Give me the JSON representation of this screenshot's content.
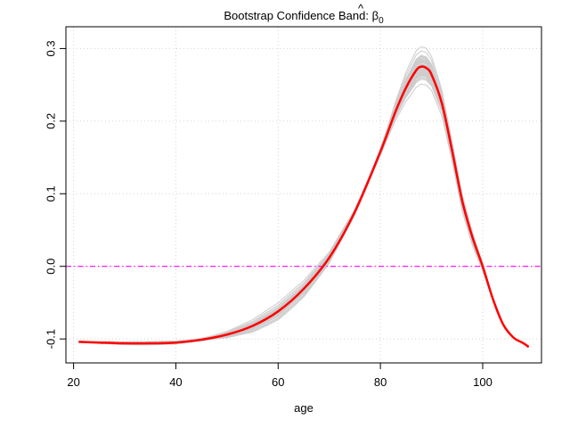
{
  "chart_data": {
    "type": "line",
    "title_text": "Bootstrap Confidence Band: ",
    "title_symbol": "β",
    "title_hat": "^",
    "title_subscript": "0",
    "xlabel": "age",
    "ylabel": "",
    "xlim": [
      18.5,
      111.5
    ],
    "ylim": [
      -0.133,
      0.33
    ],
    "x_ticks": [
      20,
      40,
      60,
      80,
      100
    ],
    "x_tick_labels": [
      "20",
      "40",
      "60",
      "80",
      "100"
    ],
    "y_ticks": [
      -0.1,
      0.0,
      0.1,
      0.2,
      0.3
    ],
    "y_tick_labels": [
      "-0.1",
      "0.0",
      "0.1",
      "0.2",
      "0.3"
    ],
    "grid": true,
    "reference_line": {
      "y": 0.0,
      "color": "#ff00ff",
      "style": "dotdash"
    },
    "band_color": "#cccccc",
    "band_replicates": 60,
    "series": [
      {
        "role": "estimate",
        "color": "#ff0000",
        "x": [
          21,
          25,
          30,
          35,
          40,
          45,
          50,
          55,
          60,
          65,
          70,
          75,
          80,
          83,
          85,
          87,
          88,
          89,
          90,
          92,
          94,
          96,
          98,
          100,
          102,
          104,
          106,
          108,
          109
        ],
        "y": [
          -0.104,
          -0.105,
          -0.106,
          -0.106,
          -0.105,
          -0.101,
          -0.094,
          -0.082,
          -0.062,
          -0.031,
          0.012,
          0.075,
          0.158,
          0.214,
          0.246,
          0.27,
          0.275,
          0.273,
          0.264,
          0.225,
          0.16,
          0.09,
          0.04,
          0.0,
          -0.045,
          -0.08,
          -0.098,
          -0.106,
          -0.111
        ]
      }
    ]
  }
}
